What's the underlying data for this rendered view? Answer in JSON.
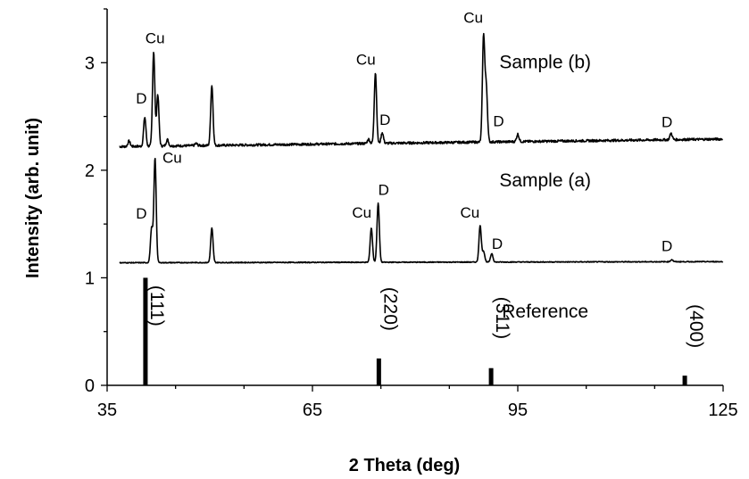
{
  "chart_data": {
    "type": "line",
    "xlabel": "2 Theta (deg)",
    "ylabel": "Intensity (arb. unit)",
    "xlim": [
      35,
      125
    ],
    "ylim": [
      0,
      3.5
    ],
    "xticks": [
      35,
      65,
      95,
      125
    ],
    "yticks": [
      0,
      1,
      2,
      3
    ],
    "grid": false,
    "legend": "none",
    "series": [
      {
        "label": "Sample (b)",
        "baseline": 2.22,
        "baseline_end": 2.29,
        "peaks": [
          {
            "x": 38.2,
            "h": 0.05
          },
          {
            "x": 40.5,
            "h": 0.27
          },
          {
            "x": 41.8,
            "h": 0.88
          },
          {
            "x": 42.4,
            "h": 0.48
          },
          {
            "x": 43.8,
            "h": 0.06
          },
          {
            "x": 48.0,
            "h": 0.02
          },
          {
            "x": 50.3,
            "h": 0.56
          },
          {
            "x": 73.2,
            "h": 0.04
          },
          {
            "x": 74.2,
            "h": 0.66
          },
          {
            "x": 75.2,
            "h": 0.1
          },
          {
            "x": 90.0,
            "h": 0.98
          },
          {
            "x": 90.4,
            "h": 0.5
          },
          {
            "x": 95.0,
            "h": 0.07
          },
          {
            "x": 117.4,
            "h": 0.06
          }
        ]
      },
      {
        "label": "Sample (a)",
        "baseline": 1.14,
        "baseline_end": 1.15,
        "peaks": [
          {
            "x": 41.5,
            "h": 0.32
          },
          {
            "x": 42.0,
            "h": 0.97
          },
          {
            "x": 50.3,
            "h": 0.32
          },
          {
            "x": 73.6,
            "h": 0.32
          },
          {
            "x": 74.6,
            "h": 0.55
          },
          {
            "x": 89.5,
            "h": 0.34
          },
          {
            "x": 90.0,
            "h": 0.1
          },
          {
            "x": 91.2,
            "h": 0.08
          },
          {
            "x": 117.5,
            "h": 0.02
          }
        ]
      },
      {
        "label": "Reference",
        "sticks": [
          {
            "x": 40.6,
            "y": 1.0,
            "miller": "(111)"
          },
          {
            "x": 74.7,
            "y": 0.25,
            "miller": "(220)"
          },
          {
            "x": 91.1,
            "y": 0.16,
            "miller": "(311)"
          },
          {
            "x": 119.4,
            "y": 0.09,
            "miller": "(400)"
          }
        ]
      }
    ],
    "annotations": [
      {
        "text": "Cu",
        "x": 42.0,
        "y": 3.18
      },
      {
        "text": "D",
        "x": 40.0,
        "y": 2.62
      },
      {
        "text": "Cu",
        "x": 72.8,
        "y": 2.98
      },
      {
        "text": "D",
        "x": 75.6,
        "y": 2.42
      },
      {
        "text": "Cu",
        "x": 88.5,
        "y": 3.37
      },
      {
        "text": "D",
        "x": 92.2,
        "y": 2.41
      },
      {
        "text": "D",
        "x": 116.8,
        "y": 2.4
      },
      {
        "text": "Cu",
        "x": 44.5,
        "y": 2.07
      },
      {
        "text": "D",
        "x": 40.0,
        "y": 1.55
      },
      {
        "text": "D",
        "x": 75.4,
        "y": 1.77
      },
      {
        "text": "Cu",
        "x": 72.2,
        "y": 1.56
      },
      {
        "text": "Cu",
        "x": 88.0,
        "y": 1.56
      },
      {
        "text": "D",
        "x": 92.0,
        "y": 1.27
      },
      {
        "text": "D",
        "x": 116.8,
        "y": 1.25
      }
    ]
  }
}
